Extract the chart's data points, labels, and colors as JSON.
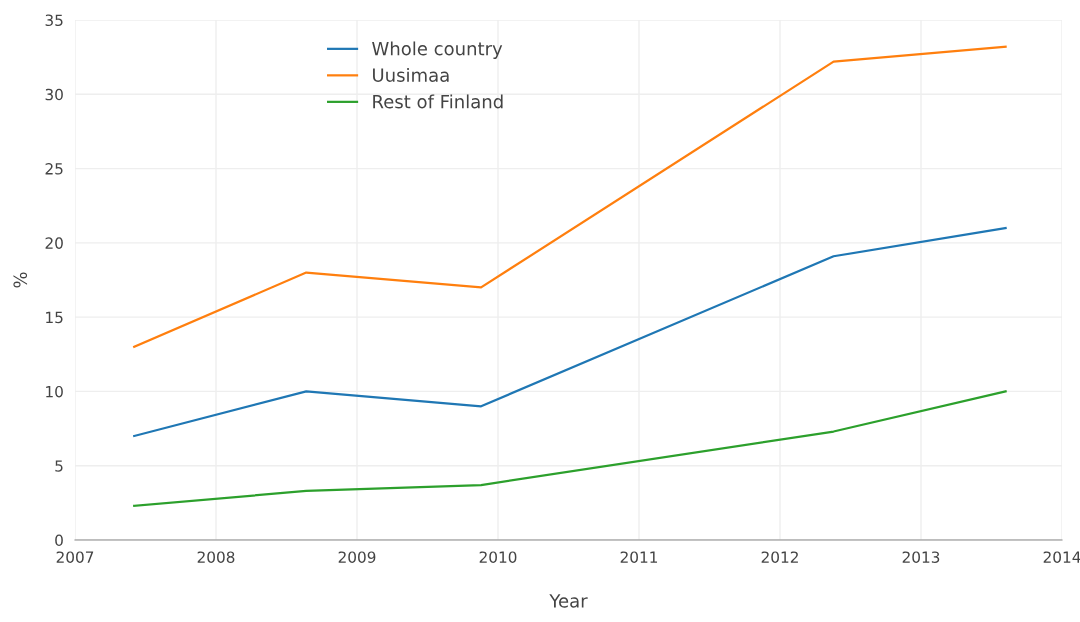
{
  "chart_data": {
    "type": "line",
    "xlabel": "Year",
    "ylabel": "%",
    "x": [
      2007.42,
      2008.64,
      2009.88,
      2012.38,
      2013.6
    ],
    "series": [
      {
        "name": "Whole country",
        "color": "#1f77b4",
        "values": [
          7,
          10,
          9,
          19.1,
          21
        ]
      },
      {
        "name": "Uusimaa",
        "color": "#ff7f0e",
        "values": [
          13,
          18,
          17,
          32.2,
          33.2
        ]
      },
      {
        "name": "Rest of Finland",
        "color": "#2ca02c",
        "values": [
          2.3,
          3.3,
          3.7,
          7.3,
          10
        ]
      }
    ],
    "xlim": [
      2007,
      2014
    ],
    "xticks": [
      2007,
      2008,
      2009,
      2010,
      2011,
      2012,
      2013,
      2014
    ],
    "ylim": [
      0,
      35
    ],
    "yticks": [
      0,
      5,
      10,
      15,
      20,
      25,
      30,
      35
    ],
    "grid": true,
    "legend": "top left",
    "marker": "none",
    "line_style": "solid"
  }
}
